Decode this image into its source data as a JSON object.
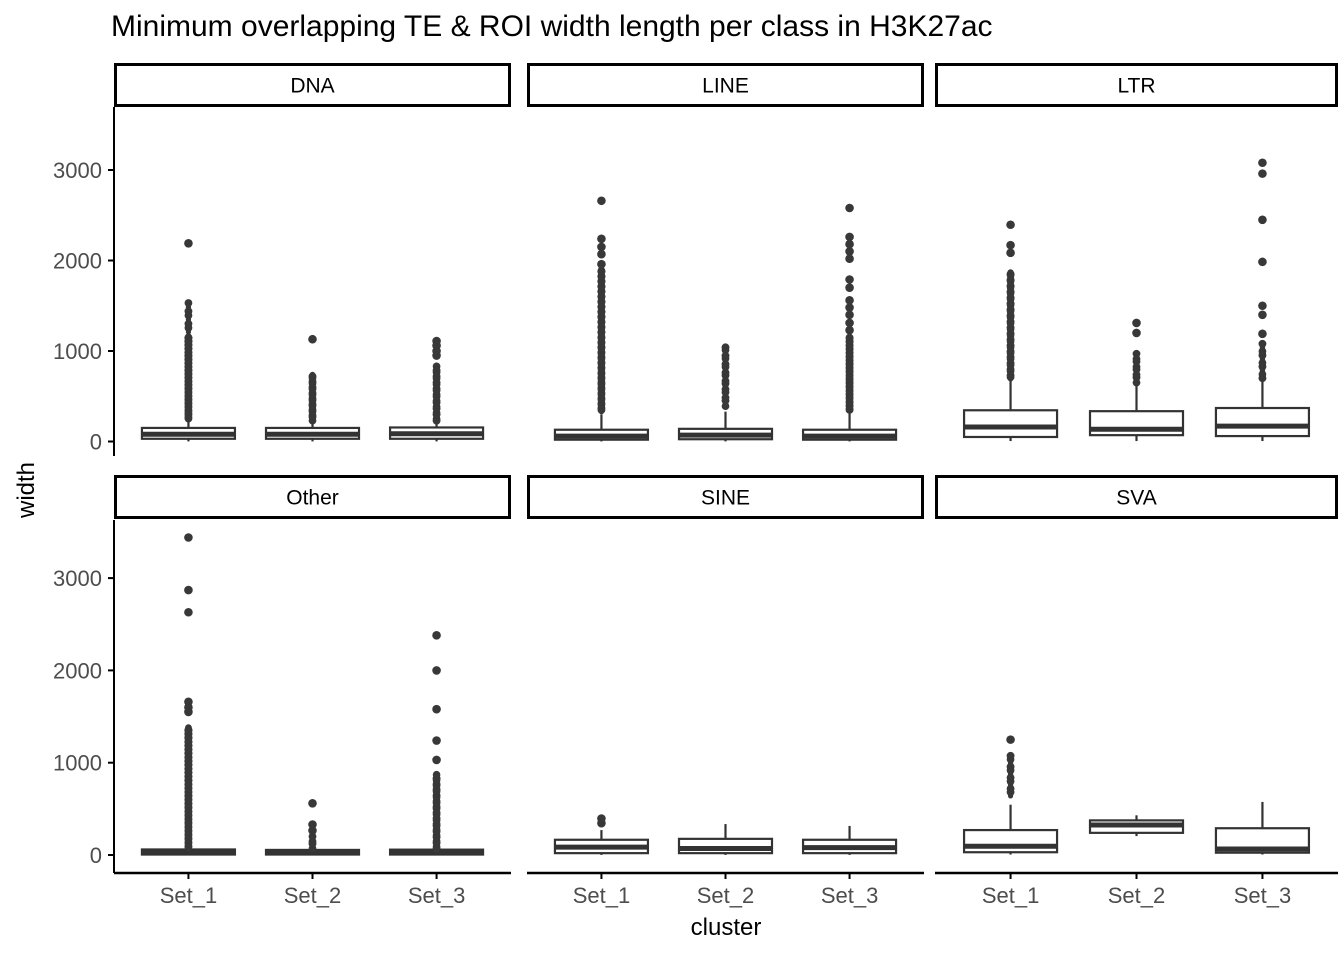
{
  "title": "Minimum overlapping TE & ROI width length per class in H3K27ac",
  "y_axis": {
    "title": "width",
    "tick_labels": [
      "0",
      "1000",
      "2000",
      "3000"
    ],
    "tick_values": [
      0,
      1000,
      2000,
      3000
    ]
  },
  "x_axis": {
    "title": "cluster",
    "categories": [
      "Set_1",
      "Set_2",
      "Set_3"
    ]
  },
  "colors": {
    "background": "#ffffff",
    "axis_line": "#000000",
    "tick_label": "#4d4d4d",
    "box_stroke": "#333333",
    "box_fill": "#ffffff",
    "outlier": "#383838",
    "strip_fill": "#ffffff",
    "strip_border": "#000000",
    "strip_text": "#000000",
    "title_color": "#000000"
  },
  "chart_data": {
    "type": "boxplot",
    "title": "Minimum overlapping TE & ROI width length per class in H3K27ac",
    "xlabel": "cluster",
    "ylabel": "width",
    "ylim": [
      0,
      3700
    ],
    "grid": "off",
    "legend": "none",
    "facet_layout": {
      "rows": 2,
      "cols": 3
    },
    "categories": [
      "Set_1",
      "Set_2",
      "Set_3"
    ],
    "facets": [
      {
        "label": "DNA",
        "boxes": [
          {
            "category": "Set_1",
            "whisker_low": 1,
            "q1": 30,
            "median": 80,
            "q3": 150,
            "whisker_high": 230,
            "outlier_runs": [
              [
                240,
                1160,
                70
              ],
              [
                1210,
                1530,
                8
              ]
            ],
            "outliers": [
              2190
            ]
          },
          {
            "category": "Set_2",
            "whisker_low": 1,
            "q1": 30,
            "median": 80,
            "q3": 150,
            "whisker_high": 215,
            "outlier_runs": [
              [
                230,
                740,
                26
              ]
            ],
            "outliers": [
              1130
            ]
          },
          {
            "category": "Set_3",
            "whisker_low": 1,
            "q1": 30,
            "median": 85,
            "q3": 155,
            "whisker_high": 220,
            "outlier_runs": [
              [
                230,
                830,
                28
              ]
            ],
            "outliers": [
              950,
              1000,
              1060,
              1110
            ]
          }
        ]
      },
      {
        "label": "LINE",
        "boxes": [
          {
            "category": "Set_1",
            "whisker_low": 1,
            "q1": 20,
            "median": 60,
            "q3": 130,
            "whisker_high": 300,
            "outlier_runs": [
              [
                330,
                1900,
                85
              ]
            ],
            "outliers": [
              1960,
              2070,
              2150,
              2240,
              2660
            ]
          },
          {
            "category": "Set_2",
            "whisker_low": 1,
            "q1": 25,
            "median": 70,
            "q3": 140,
            "whisker_high": 330,
            "outlier_runs": [
              [
                390,
                1040,
                22
              ]
            ],
            "outliers": []
          },
          {
            "category": "Set_3",
            "whisker_low": 1,
            "q1": 20,
            "median": 60,
            "q3": 130,
            "whisker_high": 320,
            "outlier_runs": [
              [
                350,
                1160,
                60
              ]
            ],
            "outliers": [
              1230,
              1310,
              1400,
              1480,
              1560,
              1700,
              1790,
              2020,
              2100,
              2180,
              2260,
              2580
            ]
          }
        ]
      },
      {
        "label": "LTR",
        "boxes": [
          {
            "category": "Set_1",
            "whisker_low": 5,
            "q1": 50,
            "median": 160,
            "q3": 345,
            "whisker_high": 670,
            "outlier_runs": [
              [
                690,
                1870,
                55
              ]
            ],
            "outliers": [
              2085,
              2170,
              2395
            ]
          },
          {
            "category": "Set_2",
            "whisker_low": 5,
            "q1": 70,
            "median": 135,
            "q3": 335,
            "whisker_high": 640,
            "outlier_runs": [
              [
                650,
                970,
                12
              ]
            ],
            "outliers": [
              1200,
              1310
            ]
          },
          {
            "category": "Set_3",
            "whisker_low": 5,
            "q1": 60,
            "median": 170,
            "q3": 370,
            "whisker_high": 690,
            "outlier_runs": [
              [
                700,
                1080,
                10
              ]
            ],
            "outliers": [
              1190,
              1400,
              1500,
              1985,
              2450,
              2960,
              3080
            ]
          }
        ]
      },
      {
        "label": "Other",
        "boxes": [
          {
            "category": "Set_1",
            "whisker_low": 1,
            "q1": 5,
            "median": 28,
            "q3": 60,
            "whisker_high": 65,
            "outlier_runs": [
              [
                70,
                1380,
                95
              ]
            ],
            "outliers": [
              1550,
              1600,
              1660,
              2630,
              2870,
              3440
            ]
          },
          {
            "category": "Set_2",
            "whisker_low": 1,
            "q1": 5,
            "median": 28,
            "q3": 55,
            "whisker_high": 60,
            "outlier_runs": [
              [
                70,
                200,
                6
              ]
            ],
            "outliers": [
              265,
              330,
              560
            ]
          },
          {
            "category": "Set_3",
            "whisker_low": 1,
            "q1": 5,
            "median": 28,
            "q3": 58,
            "whisker_high": 62,
            "outlier_runs": [
              [
                70,
                870,
                40
              ]
            ],
            "outliers": [
              1030,
              1240,
              1580,
              2000,
              2380
            ]
          }
        ]
      },
      {
        "label": "SINE",
        "boxes": [
          {
            "category": "Set_1",
            "whisker_low": 1,
            "q1": 20,
            "median": 85,
            "q3": 165,
            "whisker_high": 270,
            "outlier_runs": [],
            "outliers": [
              345,
              395
            ]
          },
          {
            "category": "Set_2",
            "whisker_low": 1,
            "q1": 20,
            "median": 70,
            "q3": 175,
            "whisker_high": 335,
            "outlier_runs": [],
            "outliers": []
          },
          {
            "category": "Set_3",
            "whisker_low": 1,
            "q1": 20,
            "median": 80,
            "q3": 165,
            "whisker_high": 315,
            "outlier_runs": [],
            "outliers": []
          }
        ]
      },
      {
        "label": "SVA",
        "boxes": [
          {
            "category": "Set_1",
            "whisker_low": 5,
            "q1": 30,
            "median": 95,
            "q3": 270,
            "whisker_high": 545,
            "outlier_runs": [
              [
                640,
                1075,
                12
              ]
            ],
            "outliers": [
              1250
            ]
          },
          {
            "category": "Set_2",
            "whisker_low": 205,
            "q1": 240,
            "median": 325,
            "q3": 375,
            "whisker_high": 430,
            "outlier_runs": [],
            "outliers": []
          },
          {
            "category": "Set_3",
            "whisker_low": 5,
            "q1": 25,
            "median": 65,
            "q3": 290,
            "whisker_high": 575,
            "outlier_runs": [],
            "outliers": []
          }
        ]
      }
    ]
  }
}
